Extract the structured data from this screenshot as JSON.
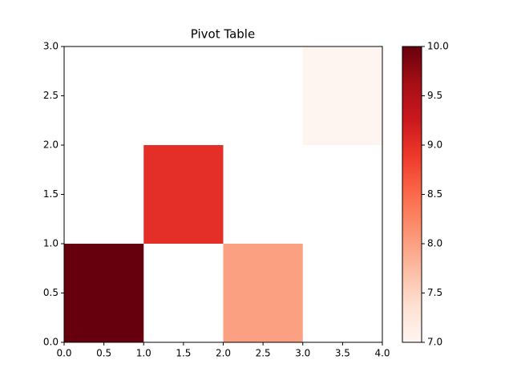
{
  "chart_data": {
    "type": "heatmap",
    "title": "Pivot Table",
    "colormap": "Reds",
    "values": [
      [
        10,
        null,
        8,
        null
      ],
      [
        null,
        9,
        null,
        null
      ],
      [
        null,
        null,
        null,
        7
      ]
    ],
    "xlim": [
      0,
      4
    ],
    "ylim": [
      0,
      3
    ],
    "xticks": [
      {
        "value": 0,
        "label": "0.0"
      },
      {
        "value": 0.5,
        "label": "0.5"
      },
      {
        "value": 1,
        "label": "1.0"
      },
      {
        "value": 1.5,
        "label": "1.5"
      },
      {
        "value": 2,
        "label": "2.0"
      },
      {
        "value": 2.5,
        "label": "2.5"
      },
      {
        "value": 3,
        "label": "3.0"
      },
      {
        "value": 3.5,
        "label": "3.5"
      },
      {
        "value": 4,
        "label": "4.0"
      }
    ],
    "yticks": [
      {
        "value": 0,
        "label": "0.0"
      },
      {
        "value": 0.5,
        "label": "0.5"
      },
      {
        "value": 1,
        "label": "1.0"
      },
      {
        "value": 1.5,
        "label": "1.5"
      },
      {
        "value": 2,
        "label": "2.0"
      },
      {
        "value": 2.5,
        "label": "2.5"
      },
      {
        "value": 3,
        "label": "3.0"
      }
    ],
    "clim": [
      7,
      10
    ],
    "cticks": [
      {
        "value": 7,
        "label": "7.0"
      },
      {
        "value": 7.5,
        "label": "7.5"
      },
      {
        "value": 8,
        "label": "8.0"
      },
      {
        "value": 8.5,
        "label": "8.5"
      },
      {
        "value": 9,
        "label": "9.0"
      },
      {
        "value": 9.5,
        "label": "9.5"
      },
      {
        "value": 10,
        "label": "10.0"
      }
    ]
  }
}
